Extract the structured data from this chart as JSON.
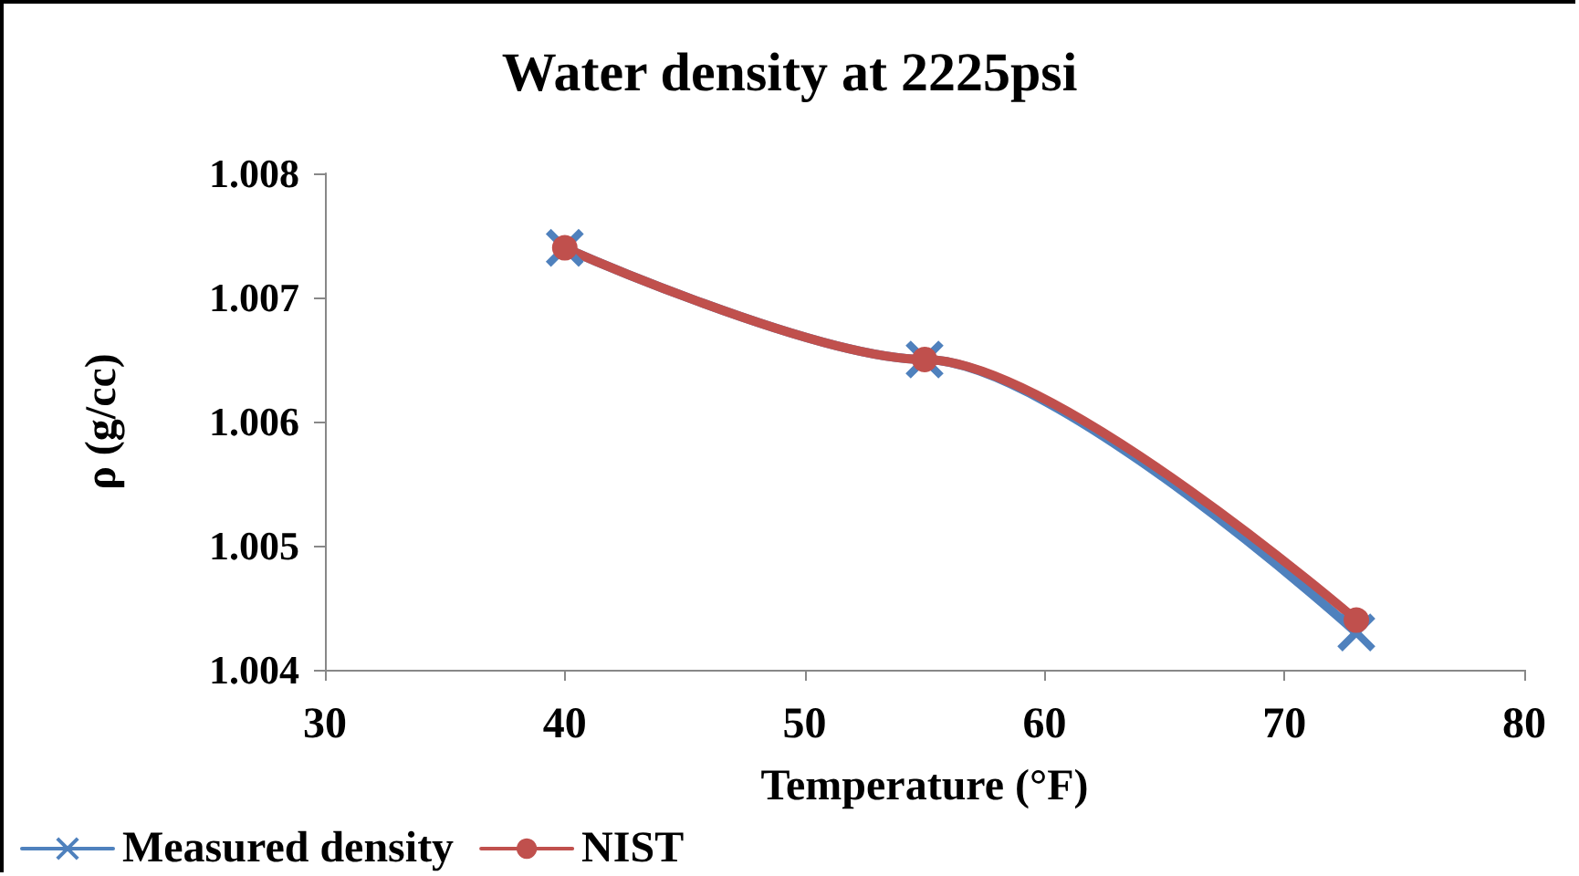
{
  "chart_data": {
    "type": "line",
    "title": "Water density at 2225psi",
    "xlabel": "Temperature (°F)",
    "ylabel": "ρ (g/cc)",
    "x": [
      40,
      55,
      73
    ],
    "series": [
      {
        "name": "Measured density",
        "color": "#4f81bd",
        "values": [
          1.0074,
          1.0065,
          1.0043
        ],
        "marker": "cross"
      },
      {
        "name": "NIST",
        "color": "#c0504d",
        "values": [
          1.0074,
          1.0065,
          1.0044
        ],
        "marker": "circle"
      }
    ],
    "xlim": [
      30,
      80
    ],
    "xticks": [
      30,
      40,
      50,
      60,
      70,
      80
    ],
    "ylim": [
      1.004,
      1.008
    ],
    "yticks": [
      1.004,
      1.005,
      1.006,
      1.007,
      1.008
    ],
    "grid": false,
    "legend": "bottom left",
    "line_style": "solid"
  }
}
